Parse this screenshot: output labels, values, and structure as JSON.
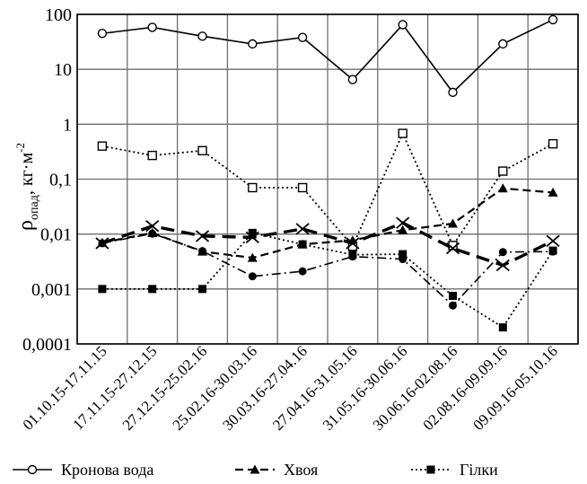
{
  "chart_data": {
    "type": "line",
    "y_scale": "log",
    "ylim": [
      0.0001,
      100
    ],
    "grid": true,
    "legend_placement": "bottom",
    "ylabel": {
      "symbol": "ρ",
      "subscript": "опад",
      "unit": ", кг·м",
      "superscript": "-2"
    },
    "y_ticks": [
      "0,0001",
      "0,001",
      "0,01",
      "0,1",
      "1",
      "10",
      "100"
    ],
    "categories": [
      "01.10.15-17.11.15",
      "17.11.15-27.12.15",
      "27.12.15-25.02.16",
      "25.02.16-30.03.16",
      "30.03.16-27.04.16",
      "27.04.16-31.05.16",
      "31.05.16-30.06.16",
      "30.06.16-02.08.16",
      "02.08.16-09.09.16",
      "09.09.16-05.10.16"
    ],
    "series": [
      {
        "name": "Кронова вода",
        "marker": "open-circle",
        "line": "solid",
        "values": [
          45,
          58,
          40,
          29,
          38,
          6.5,
          65,
          3.8,
          29,
          80
        ]
      },
      {
        "name": "Хвоя",
        "marker": "triangle",
        "line": "dashed",
        "values": [
          0.007,
          0.0105,
          0.0048,
          0.0037,
          0.0065,
          0.0077,
          0.0118,
          0.0155,
          0.068,
          0.057
        ]
      },
      {
        "name": "Гілки",
        "marker": "filled-square",
        "line": "dotted",
        "values": [
          0.001,
          0.001,
          0.001,
          0.0105,
          0.0065,
          0.0042,
          0.0043,
          0.00075,
          0.0002,
          0.005
        ]
      },
      {
        "name": "",
        "marker": "open-square",
        "line": "dotted",
        "values": [
          0.4,
          0.27,
          0.33,
          0.07,
          0.07,
          0.006,
          0.68,
          0.0062,
          0.14,
          0.44
        ]
      },
      {
        "name": "",
        "marker": "cross",
        "line": "long-dash-bold",
        "values": [
          0.0068,
          0.014,
          0.0092,
          0.0087,
          0.0124,
          0.0068,
          0.016,
          0.0055,
          0.0027,
          0.0075
        ]
      },
      {
        "name": "",
        "marker": "filled-circle",
        "line": "dash-dot",
        "values": [
          0.0068,
          0.0102,
          0.0049,
          0.0017,
          0.0021,
          0.0039,
          0.0035,
          0.0005,
          0.0047,
          0.0048
        ]
      }
    ]
  }
}
